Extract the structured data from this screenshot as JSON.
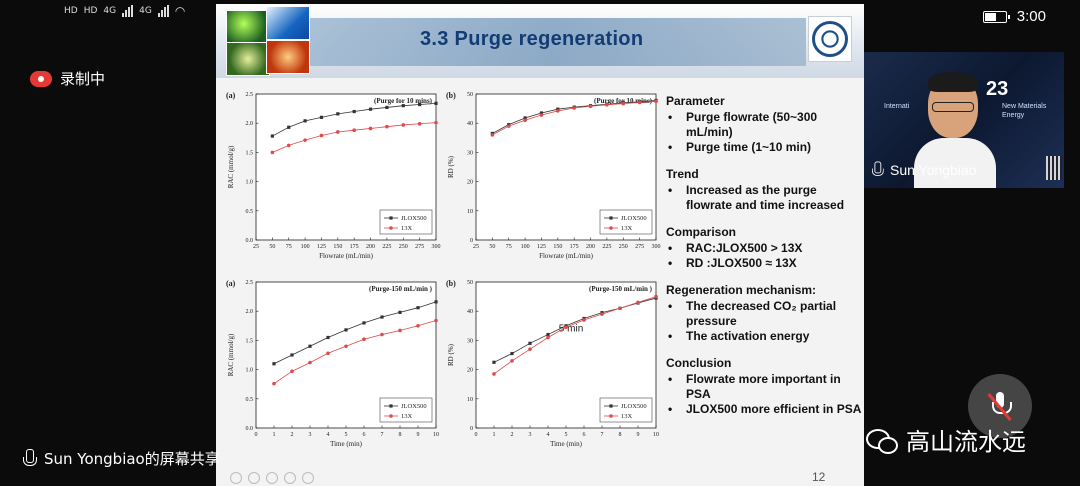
{
  "status_bar": {
    "left_labels": [
      "HD",
      "HD",
      "4G",
      "4G"
    ],
    "time": "3:00",
    "battery_level": 0.6
  },
  "recording": {
    "label": "录制中"
  },
  "share": {
    "label": "Sun Yongbiao的屏幕共享"
  },
  "slide": {
    "title": "3.3  Purge regeneration",
    "page_number": "12",
    "notes": [
      {
        "heading": "Parameter",
        "items": [
          "Purge flowrate (50~300 mL/min)",
          "Purge time (1~10 min)"
        ]
      },
      {
        "heading": "Trend",
        "items": [
          "Increased as the purge flowrate and time increased"
        ]
      },
      {
        "heading": "Comparison",
        "items": [
          "RAC:JLOX500 > 13X",
          "RD  :JLOX500 ≈ 13X"
        ]
      },
      {
        "heading": "Regeneration mechanism:",
        "items": [
          "The decreased CO₂ partial pressure",
          "The activation energy"
        ]
      },
      {
        "heading": "Conclusion",
        "items": [
          "Flowrate more important in PSA",
          "JLOX500 more efficient in PSA"
        ]
      }
    ]
  },
  "video": {
    "participant_name": "Sun Yongbiao",
    "background_text": "23",
    "background_small": [
      "Internati",
      "New Materials",
      "Energy"
    ]
  },
  "watermark": {
    "text": "高山流水远"
  },
  "colors": {
    "series_jlox": "#333333",
    "series_13x": "#e04a4a",
    "title": "#123c73"
  },
  "chart_data": [
    {
      "type": "line",
      "panel_label": "(a)",
      "annotation": "(Purge  for 10 mins)",
      "xlabel": "Flowrate (mL/min)",
      "ylabel": "RAC (mmol/g)",
      "xlim": [
        25,
        300
      ],
      "ylim": [
        0.0,
        2.5
      ],
      "xticks": [
        25,
        50,
        75,
        100,
        125,
        150,
        175,
        200,
        225,
        250,
        275,
        300
      ],
      "yticks": [
        0.0,
        0.5,
        1.0,
        1.5,
        2.0,
        2.5
      ],
      "ytick_labels": [
        "0.0",
        "0.5",
        "1.0",
        "1.5",
        "2.0",
        "2.5"
      ],
      "legend": "bottom-right",
      "x": [
        50,
        75,
        100,
        125,
        150,
        175,
        200,
        225,
        250,
        275,
        300
      ],
      "series": [
        {
          "name": "JLOX500",
          "values": [
            1.78,
            1.93,
            2.04,
            2.1,
            2.16,
            2.2,
            2.24,
            2.27,
            2.3,
            2.32,
            2.34
          ]
        },
        {
          "name": "13X",
          "values": [
            1.5,
            1.62,
            1.71,
            1.79,
            1.85,
            1.88,
            1.91,
            1.94,
            1.97,
            1.99,
            2.01
          ]
        }
      ]
    },
    {
      "type": "line",
      "panel_label": "(b)",
      "annotation": "(Purge for 10 mins)",
      "xlabel": "Flowrate (mL/min)",
      "ylabel": "RD (%)",
      "xlim": [
        25,
        300
      ],
      "ylim": [
        0,
        50
      ],
      "xticks": [
        25,
        50,
        75,
        100,
        125,
        150,
        175,
        200,
        225,
        250,
        275,
        300
      ],
      "yticks": [
        0,
        10,
        20,
        30,
        40,
        50
      ],
      "ytick_labels": [
        "0",
        "10",
        "20",
        "30",
        "40",
        "50"
      ],
      "legend": "bottom-right",
      "x": [
        50,
        75,
        100,
        125,
        150,
        175,
        200,
        225,
        250,
        275,
        300
      ],
      "series": [
        {
          "name": "JLOX500",
          "values": [
            36.5,
            39.5,
            41.8,
            43.5,
            44.8,
            45.5,
            46.0,
            46.5,
            47.0,
            47.3,
            47.8
          ]
        },
        {
          "name": "13X",
          "values": [
            36.0,
            39.0,
            41.0,
            42.8,
            44.2,
            45.2,
            45.8,
            46.3,
            46.7,
            47.1,
            47.5
          ]
        }
      ]
    },
    {
      "type": "line",
      "panel_label": "(a)",
      "annotation": "(Purge-150 mL/min )",
      "xlabel": "Time (min)",
      "ylabel": "RAC (mmol/g)",
      "xlim": [
        0,
        10
      ],
      "ylim": [
        0.0,
        2.5
      ],
      "xticks": [
        0,
        1,
        2,
        3,
        4,
        5,
        6,
        7,
        8,
        9,
        10
      ],
      "yticks": [
        0.0,
        0.5,
        1.0,
        1.5,
        2.0,
        2.5
      ],
      "ytick_labels": [
        "0.0",
        "0.5",
        "1.0",
        "1.5",
        "2.0",
        "2.5"
      ],
      "legend": "bottom-right",
      "x": [
        1,
        2,
        3,
        4,
        5,
        6,
        7,
        8,
        9,
        10
      ],
      "series": [
        {
          "name": "JLOX500",
          "values": [
            1.1,
            1.25,
            1.4,
            1.55,
            1.68,
            1.8,
            1.9,
            1.98,
            2.06,
            2.16
          ]
        },
        {
          "name": "13X",
          "values": [
            0.76,
            0.97,
            1.12,
            1.28,
            1.4,
            1.52,
            1.6,
            1.67,
            1.75,
            1.84
          ]
        }
      ]
    },
    {
      "type": "line",
      "panel_label": "(b)",
      "annotation": "(Purge-150 mL/min )",
      "inner_label": "5 min",
      "xlabel": "Time (min)",
      "ylabel": "RD (%)",
      "xlim": [
        0,
        10
      ],
      "ylim": [
        0,
        50
      ],
      "xticks": [
        0,
        1,
        2,
        3,
        4,
        5,
        6,
        7,
        8,
        9,
        10
      ],
      "yticks": [
        0,
        10,
        20,
        30,
        40,
        50
      ],
      "ytick_labels": [
        "0",
        "10",
        "20",
        "30",
        "40",
        "50"
      ],
      "legend": "bottom-right",
      "x": [
        1,
        2,
        3,
        4,
        5,
        6,
        7,
        8,
        9,
        10
      ],
      "series": [
        {
          "name": "JLOX500",
          "values": [
            22.5,
            25.5,
            29.0,
            32.0,
            35.0,
            37.5,
            39.5,
            41.0,
            42.8,
            44.5
          ]
        },
        {
          "name": "13X",
          "values": [
            18.5,
            23.0,
            27.0,
            31.0,
            34.5,
            37.0,
            39.0,
            41.0,
            43.0,
            45.0
          ]
        }
      ]
    }
  ]
}
